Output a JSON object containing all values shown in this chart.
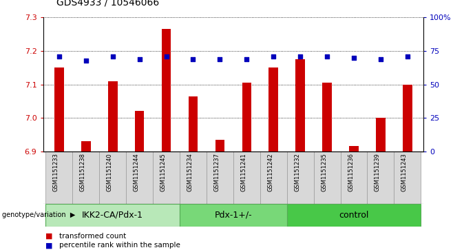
{
  "title": "GDS4933 / 10546066",
  "samples": [
    "GSM1151233",
    "GSM1151238",
    "GSM1151240",
    "GSM1151244",
    "GSM1151245",
    "GSM1151234",
    "GSM1151237",
    "GSM1151241",
    "GSM1151242",
    "GSM1151232",
    "GSM1151235",
    "GSM1151236",
    "GSM1151239",
    "GSM1151243"
  ],
  "transformed_counts": [
    7.15,
    6.93,
    7.11,
    7.02,
    7.265,
    7.065,
    6.935,
    7.105,
    7.15,
    7.175,
    7.105,
    6.915,
    7.0,
    7.1
  ],
  "percentile_ranks": [
    71,
    68,
    71,
    69,
    71,
    69,
    69,
    69,
    71,
    71,
    71,
    70,
    69,
    71
  ],
  "groups": [
    {
      "label": "IKK2-CA/Pdx-1",
      "start": 0,
      "end": 5,
      "color": "#b8e8b8"
    },
    {
      "label": "Pdx-1+/-",
      "start": 5,
      "end": 9,
      "color": "#78d878"
    },
    {
      "label": "control",
      "start": 9,
      "end": 14,
      "color": "#48c848"
    }
  ],
  "bar_color": "#cc0000",
  "dot_color": "#0000bb",
  "ylim_left": [
    6.9,
    7.3
  ],
  "ylim_right": [
    0,
    100
  ],
  "yticks_left": [
    6.9,
    7.0,
    7.1,
    7.2,
    7.3
  ],
  "yticks_right": [
    0,
    25,
    50,
    75,
    100
  ],
  "yticklabels_right": [
    "0",
    "25",
    "50",
    "75",
    "100%"
  ],
  "legend_bar": "transformed count",
  "legend_dot": "percentile rank within the sample",
  "title_fontsize": 10,
  "tick_fontsize": 8,
  "sample_fontsize": 6,
  "group_label_fontsize": 9,
  "legend_fontsize": 7.5
}
